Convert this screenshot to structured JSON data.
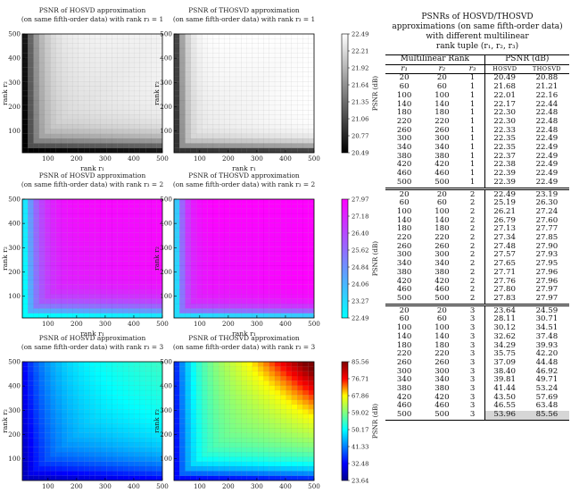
{
  "figure": {
    "panels": [
      {
        "id": "hosvd-r3-1",
        "title_line1": "PSNR of HOSVD approximation",
        "title_line2": "(on same fifth-order data) with rank r₃ = 1"
      },
      {
        "id": "thosvd-r3-1",
        "title_line1": "PSNR of THOSVD approximation",
        "title_line2": "(on same fifth-order data) with rank r₃ = 1"
      },
      {
        "id": "hosvd-r3-2",
        "title_line1": "PSNR of HOSVD approximation",
        "title_line2": "(on same fifth-order data) with rank r₃ = 2"
      },
      {
        "id": "thosvd-r3-2",
        "title_line1": "PSNR of THOSVD approximation",
        "title_line2": "(on same fifth-order data) with rank r₃ = 2"
      },
      {
        "id": "hosvd-r3-3",
        "title_line1": "PSNR of HOSVD approximation",
        "title_line2": "(on same fifth-order data) with rank r₃ = 3"
      },
      {
        "id": "thosvd-r3-3",
        "title_line1": "PSNR of THOSVD approximation",
        "title_line2": "(on same fifth-order data) with rank r₃ = 3"
      }
    ],
    "xlabel": "rank r₁",
    "ylabel": "rank r₂",
    "x_ticks": [
      "100",
      "200",
      "300",
      "400",
      "500"
    ],
    "y_ticks": [
      "100",
      "200",
      "300",
      "400",
      "500"
    ],
    "colorbars": [
      {
        "row": 1,
        "label": "PSNR (dB)",
        "ticks": [
          "22.49",
          "22.21",
          "21.92",
          "21.64",
          "21.35",
          "21.06",
          "20.77",
          "20.49"
        ],
        "colors": [
          "#ffffff",
          "#000000"
        ]
      },
      {
        "row": 2,
        "label": "PSNR (dB)",
        "ticks": [
          "27.97",
          "27.18",
          "26.40",
          "25.62",
          "24.84",
          "24.06",
          "23.27",
          "22.49"
        ],
        "colors": [
          "#ff00ff",
          "#00ffff"
        ]
      },
      {
        "row": 3,
        "label": "PSNR (dB)",
        "ticks": [
          "85.56",
          "76.71",
          "67.86",
          "59.02",
          "50.17",
          "41.33",
          "32.48",
          "23.64"
        ],
        "colors": [
          "#800000",
          "#ff0000",
          "#ffff00",
          "#80ff80",
          "#00ffff",
          "#0080ff",
          "#0000ff",
          "#00008f"
        ]
      }
    ]
  },
  "table": {
    "title_lines": [
      "PSNRs of HOSVD/THOSVD",
      "approximations (on same fifth-order data)",
      "with different multilinear",
      "rank tuple (r₁, r₂, r₃)"
    ],
    "group_headers": [
      "Multilinear Rank",
      "PSNR (dB)"
    ],
    "col_headers": [
      "r₁",
      "r₂",
      "r₃",
      "HOSVD",
      "THOSVD"
    ],
    "blocks": [
      {
        "r3": "1",
        "rows": [
          [
            "20",
            "20",
            "1",
            "20.49",
            "20.88"
          ],
          [
            "60",
            "60",
            "1",
            "21.68",
            "21.21"
          ],
          [
            "100",
            "100",
            "1",
            "22.01",
            "22.16"
          ],
          [
            "140",
            "140",
            "1",
            "22.17",
            "22.44"
          ],
          [
            "180",
            "180",
            "1",
            "22.30",
            "22.48"
          ],
          [
            "220",
            "220",
            "1",
            "22.30",
            "22.48"
          ],
          [
            "260",
            "260",
            "1",
            "22.33",
            "22.48"
          ],
          [
            "300",
            "300",
            "1",
            "22.35",
            "22.49"
          ],
          [
            "340",
            "340",
            "1",
            "22.35",
            "22.49"
          ],
          [
            "380",
            "380",
            "1",
            "22.37",
            "22.49"
          ],
          [
            "420",
            "420",
            "1",
            "22.38",
            "22.49"
          ],
          [
            "460",
            "460",
            "1",
            "22.39",
            "22.49"
          ],
          [
            "500",
            "500",
            "1",
            "22.39",
            "22.49"
          ]
        ]
      },
      {
        "r3": "2",
        "rows": [
          [
            "20",
            "20",
            "2",
            "22.49",
            "23.19"
          ],
          [
            "60",
            "60",
            "2",
            "25.19",
            "26.30"
          ],
          [
            "100",
            "100",
            "2",
            "26.21",
            "27.24"
          ],
          [
            "140",
            "140",
            "2",
            "26.79",
            "27.60"
          ],
          [
            "180",
            "180",
            "2",
            "27.13",
            "27.77"
          ],
          [
            "220",
            "220",
            "2",
            "27.34",
            "27.85"
          ],
          [
            "260",
            "260",
            "2",
            "27.48",
            "27.90"
          ],
          [
            "300",
            "300",
            "2",
            "27.57",
            "27.93"
          ],
          [
            "340",
            "340",
            "2",
            "27.65",
            "27.95"
          ],
          [
            "380",
            "380",
            "2",
            "27.71",
            "27.96"
          ],
          [
            "420",
            "420",
            "2",
            "27.76",
            "27.96"
          ],
          [
            "460",
            "460",
            "2",
            "27.80",
            "27.97"
          ],
          [
            "500",
            "500",
            "2",
            "27.83",
            "27.97"
          ]
        ]
      },
      {
        "r3": "3",
        "rows": [
          [
            "20",
            "20",
            "3",
            "23.64",
            "24.59"
          ],
          [
            "60",
            "60",
            "3",
            "28.11",
            "30.71"
          ],
          [
            "100",
            "100",
            "3",
            "30.12",
            "34.51"
          ],
          [
            "140",
            "140",
            "3",
            "32.62",
            "37.48"
          ],
          [
            "180",
            "180",
            "3",
            "34.29",
            "39.93"
          ],
          [
            "220",
            "220",
            "3",
            "35.75",
            "42.20"
          ],
          [
            "260",
            "260",
            "3",
            "37.09",
            "44.48"
          ],
          [
            "300",
            "300",
            "3",
            "38.40",
            "46.92"
          ],
          [
            "340",
            "340",
            "3",
            "39.81",
            "49.71"
          ],
          [
            "380",
            "380",
            "3",
            "41.44",
            "53.24"
          ],
          [
            "420",
            "420",
            "3",
            "43.50",
            "57.69"
          ],
          [
            "460",
            "460",
            "3",
            "46.55",
            "63.48"
          ],
          [
            "500",
            "500",
            "3",
            "53.96",
            "85.56"
          ]
        ]
      }
    ]
  },
  "chart_data": [
    {
      "type": "heatmap",
      "title": "PSNR of HOSVD approximation (on same fifth-order data) with rank r₃ = 1",
      "xlabel": "rank r₁",
      "ylabel": "rank r₂",
      "xlim": [
        20,
        500
      ],
      "ylim": [
        20,
        500
      ],
      "zlim": [
        20.49,
        22.49
      ],
      "z_corner": 20.49,
      "z_max_corner": 22.39
    },
    {
      "type": "heatmap",
      "title": "PSNR of THOSVD approximation (on same fifth-order data) with rank r₃ = 1",
      "xlabel": "rank r₁",
      "ylabel": "rank r₂",
      "xlim": [
        20,
        500
      ],
      "ylim": [
        20,
        500
      ],
      "zlim": [
        20.49,
        22.49
      ],
      "z_corner": 20.88,
      "z_max_corner": 22.49
    },
    {
      "type": "heatmap",
      "title": "PSNR of HOSVD approximation (on same fifth-order data) with rank r₃ = 2",
      "xlabel": "rank r₁",
      "ylabel": "rank r₂",
      "xlim": [
        20,
        500
      ],
      "ylim": [
        20,
        500
      ],
      "zlim": [
        22.49,
        27.97
      ],
      "z_corner": 22.49,
      "z_max_corner": 27.83
    },
    {
      "type": "heatmap",
      "title": "PSNR of THOSVD approximation (on same fifth-order data) with rank r₃ = 2",
      "xlabel": "rank r₁",
      "ylabel": "rank r₂",
      "xlim": [
        20,
        500
      ],
      "ylim": [
        20,
        500
      ],
      "zlim": [
        22.49,
        27.97
      ],
      "z_corner": 23.19,
      "z_max_corner": 27.97
    },
    {
      "type": "heatmap",
      "title": "PSNR of HOSVD approximation (on same fifth-order data) with rank r₃ = 3",
      "xlabel": "rank r₁",
      "ylabel": "rank r₂",
      "xlim": [
        20,
        500
      ],
      "ylim": [
        20,
        500
      ],
      "zlim": [
        23.64,
        85.56
      ],
      "z_corner": 23.64,
      "z_max_corner": 53.96
    },
    {
      "type": "heatmap",
      "title": "PSNR of THOSVD approximation (on same fifth-order data) with rank r₃ = 3",
      "xlabel": "rank r₁",
      "ylabel": "rank r₂",
      "xlim": [
        20,
        500
      ],
      "ylim": [
        20,
        500
      ],
      "zlim": [
        23.64,
        85.56
      ],
      "z_corner": 24.59,
      "z_max_corner": 85.56
    }
  ]
}
